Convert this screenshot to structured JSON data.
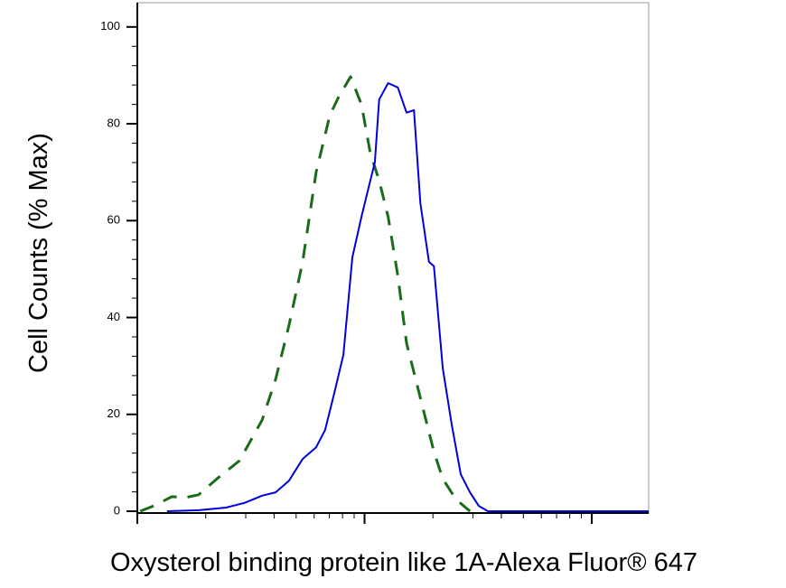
{
  "chart_data": {
    "type": "line",
    "xlabel": "Oxysterol binding protein like 1A-Alexa Fluor® 647",
    "ylabel": "Cell Counts (% Max)",
    "xscale": "log",
    "xlim": [
      1,
      178
    ],
    "xticks": [
      1,
      10,
      100
    ],
    "ylim": [
      0,
      105
    ],
    "yticks": [
      0,
      20,
      40,
      60,
      80,
      100
    ],
    "grid": false,
    "series": [
      {
        "color": "#1a6b1a",
        "dash": true,
        "x": [
          1.03,
          1.18,
          1.42,
          1.62,
          1.86,
          2.24,
          2.81,
          3.54,
          4.06,
          4.65,
          5.34,
          6.12,
          7.03,
          7.7,
          8.68,
          9.69,
          10.6,
          11.6,
          12.7,
          14.0,
          15.3,
          16.8,
          18.4,
          20.2,
          22.1,
          25.3,
          29.1
        ],
        "values": [
          0,
          1.1,
          3,
          2.8,
          3.4,
          6.7,
          10.4,
          18.8,
          27.2,
          38.4,
          51.5,
          70,
          81.7,
          85.6,
          89.7,
          84,
          73.9,
          68.3,
          60.8,
          48.7,
          34.7,
          27.2,
          19.8,
          12.3,
          6.7,
          2.4,
          0
        ]
      },
      {
        "color": "#0000dd",
        "dash": false,
        "x": [
          1.35,
          1.86,
          2.45,
          2.95,
          3.54,
          4.06,
          4.65,
          5.34,
          6.12,
          6.71,
          7.36,
          8.07,
          8.84,
          9.69,
          10.6,
          11.1,
          11.6,
          12.7,
          14.0,
          15.3,
          16.5,
          17.6,
          19.2,
          20.2,
          22.1,
          24.2,
          26.5,
          29.1,
          31.8,
          34.9,
          178
        ],
        "values": [
          0,
          0.2,
          0.75,
          1.7,
          3.2,
          3.9,
          6.3,
          10.8,
          13.2,
          16.8,
          24.4,
          32.3,
          52.4,
          60.8,
          68.3,
          72,
          85,
          88.4,
          87.5,
          82.3,
          82.8,
          63.6,
          51.5,
          50.6,
          29.5,
          17.9,
          7.6,
          3.9,
          1.1,
          0,
          0
        ]
      }
    ]
  }
}
